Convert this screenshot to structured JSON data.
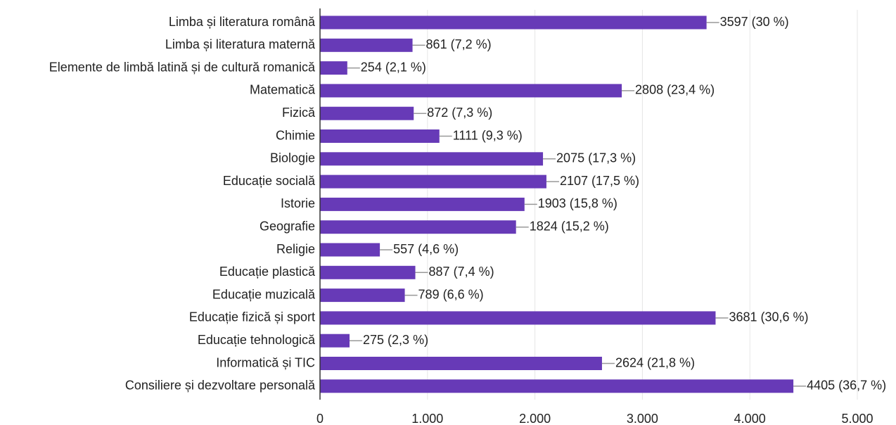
{
  "chart_data": {
    "type": "bar",
    "orientation": "horizontal",
    "categories": [
      "Limba și literatura română",
      "Limba și literatura maternă",
      "Elemente de limbă latină și de cultură romanică",
      "Matematică",
      "Fizică",
      "Chimie",
      "Biologie",
      "Educație socială",
      "Istorie",
      "Geografie",
      "Religie",
      "Educație plastică",
      "Educație muzicală",
      "Educație fizică și sport",
      "Educație tehnologică",
      "Informatică și TIC",
      "Consiliere și dezvoltare personală"
    ],
    "values": [
      3597,
      861,
      254,
      2808,
      872,
      1111,
      2075,
      2107,
      1903,
      1824,
      557,
      887,
      789,
      3681,
      275,
      2624,
      4405
    ],
    "value_labels": [
      "3597 (30 %)",
      "861 (7,2 %)",
      "254 (2,1 %)",
      "2808 (23,4 %)",
      "872 (7,3 %)",
      "1111 (9,3 %)",
      "2075 (17,3 %)",
      "2107 (17,5 %)",
      "1903 (15,8 %)",
      "1824 (15,2 %)",
      "557 (4,6 %)",
      "887 (7,4 %)",
      "789 (6,6 %)",
      "3681 (30,6 %)",
      "275 (2,3 %)",
      "2624 (21,8 %)",
      "4405 (36,7 %)"
    ],
    "color": "#673ab7",
    "xlim": [
      0,
      5000
    ],
    "xticks": [
      0,
      {
        "value": 1000,
        "label": "1.000"
      },
      {
        "value": 2000,
        "label": "2.000"
      },
      {
        "value": 3000,
        "label": "3.000"
      },
      {
        "value": 4000,
        "label": "4.000"
      },
      {
        "value": 5000,
        "label": "5.000"
      }
    ],
    "grid": true
  }
}
